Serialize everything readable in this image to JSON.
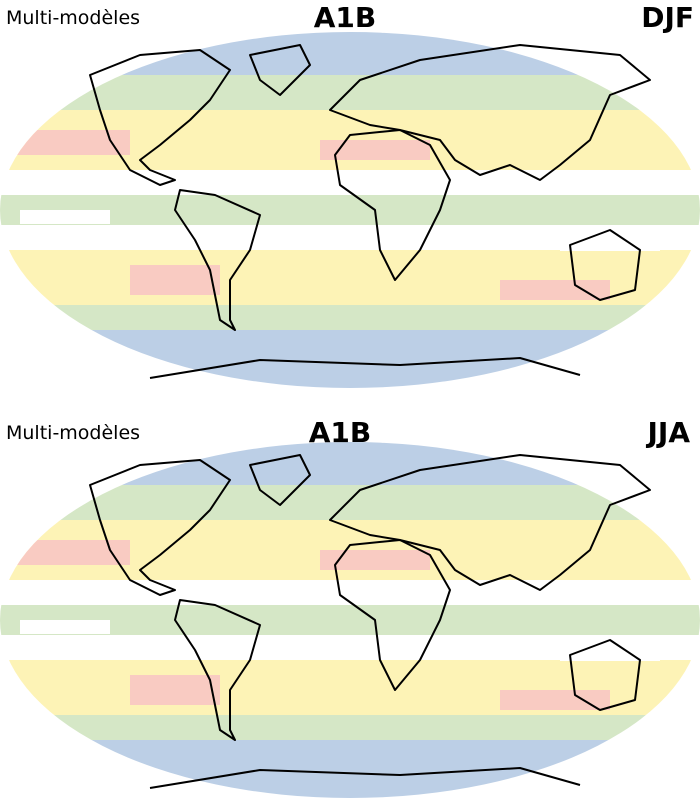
{
  "panels": [
    {
      "label": "Multi-modèles",
      "scenario": "A1B",
      "season": "DJF"
    },
    {
      "label": "Multi-modèles",
      "scenario": "A1B",
      "season": "JJA"
    }
  ]
}
